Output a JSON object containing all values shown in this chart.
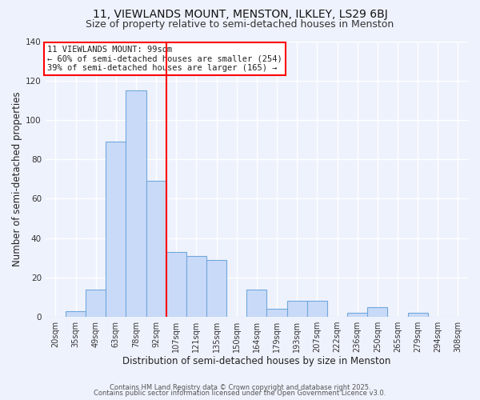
{
  "title": "11, VIEWLANDS MOUNT, MENSTON, ILKLEY, LS29 6BJ",
  "subtitle": "Size of property relative to semi-detached houses in Menston",
  "xlabel": "Distribution of semi-detached houses by size in Menston",
  "ylabel": "Number of semi-detached properties",
  "categories": [
    "20sqm",
    "35sqm",
    "49sqm",
    "63sqm",
    "78sqm",
    "92sqm",
    "107sqm",
    "121sqm",
    "135sqm",
    "150sqm",
    "164sqm",
    "179sqm",
    "193sqm",
    "207sqm",
    "222sqm",
    "236sqm",
    "250sqm",
    "265sqm",
    "279sqm",
    "294sqm",
    "308sqm"
  ],
  "values": [
    0,
    3,
    14,
    89,
    115,
    69,
    33,
    31,
    29,
    0,
    14,
    4,
    8,
    8,
    0,
    2,
    5,
    0,
    2,
    0,
    0
  ],
  "bar_color": "#c9daf8",
  "bar_edge_color": "#6fa8dc",
  "vline_color": "red",
  "vline_position": 5.5,
  "annotation_title": "11 VIEWLANDS MOUNT: 99sqm",
  "annotation_line1": "← 60% of semi-detached houses are smaller (254)",
  "annotation_line2": "39% of semi-detached houses are larger (165) →",
  "ylim": [
    0,
    140
  ],
  "yticks": [
    0,
    20,
    40,
    60,
    80,
    100,
    120,
    140
  ],
  "footnote1": "Contains HM Land Registry data © Crown copyright and database right 2025.",
  "footnote2": "Contains public sector information licensed under the Open Government Licence v3.0.",
  "background_color": "#eef2fc",
  "grid_color": "#ffffff",
  "title_fontsize": 10,
  "subtitle_fontsize": 9,
  "axis_label_fontsize": 8.5,
  "tick_fontsize": 7,
  "annotation_fontsize": 7.5,
  "footnote_fontsize": 6,
  "annotation_box_color": "#ffffff",
  "annotation_box_edge": "red"
}
